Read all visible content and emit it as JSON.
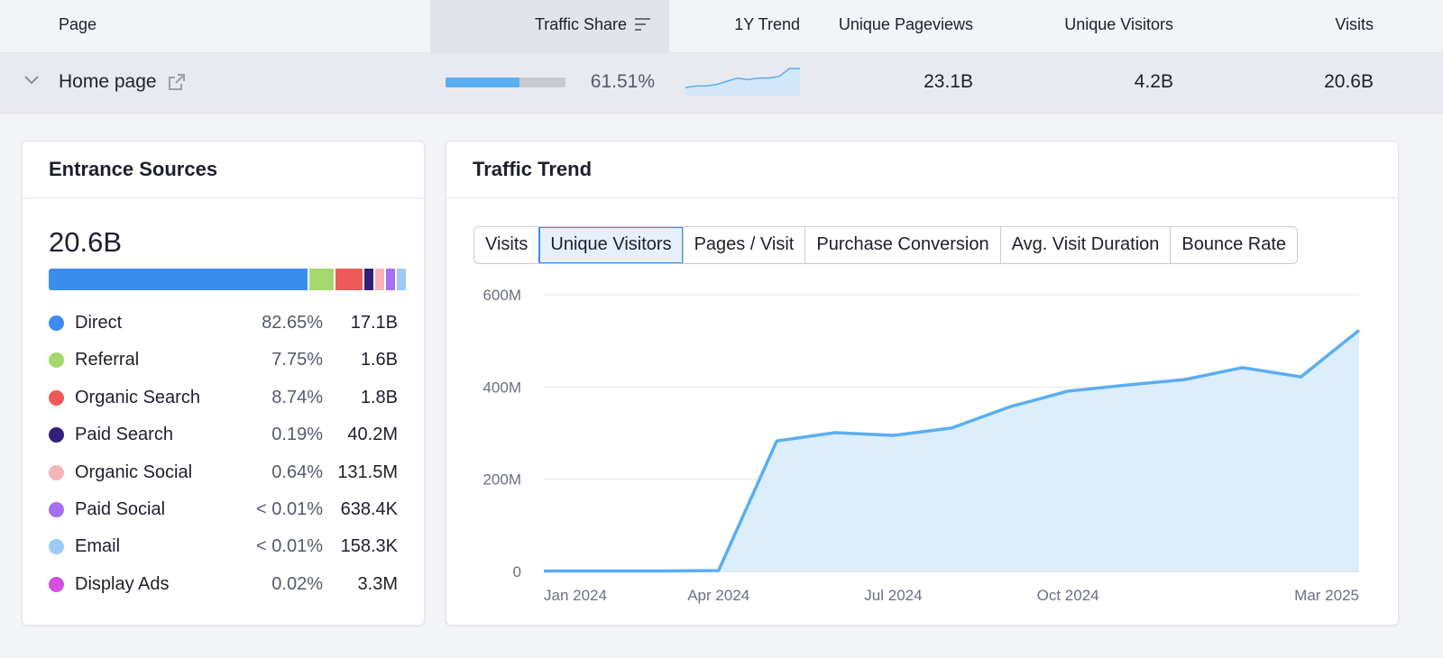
{
  "table": {
    "columns": [
      "Page",
      "Traffic Share",
      "1Y Trend",
      "Unique Pageviews",
      "Unique Visitors",
      "Visits"
    ],
    "rows": [
      {
        "page": "Home page",
        "traffic_share": {
          "value": 61.51,
          "label": "61.51%"
        },
        "trend": [
          5,
          6,
          6,
          7,
          9,
          11,
          10,
          11,
          11,
          12,
          17,
          17
        ],
        "unique_pageviews": "23.1B",
        "unique_visitors": "4.2B",
        "visits": "20.6B"
      }
    ]
  },
  "entrance_sources": {
    "title": "Entrance Sources",
    "total": "20.6B",
    "sources": [
      {
        "name": "Direct",
        "color": "#3b8ced",
        "share": {
          "value": 82.65,
          "label": "82.65%"
        },
        "visits": "17.1B"
      },
      {
        "name": "Referral",
        "color": "#a5d86e",
        "share": {
          "value": 7.75,
          "label": "7.75%"
        },
        "visits": "1.6B"
      },
      {
        "name": "Organic Search",
        "color": "#ec5a5a",
        "share": {
          "value": 8.74,
          "label": "8.74%"
        },
        "visits": "1.8B"
      },
      {
        "name": "Paid Search",
        "color": "#34207a",
        "share": {
          "value": 0.19,
          "label": "0.19%"
        },
        "visits": "40.2M"
      },
      {
        "name": "Organic Social",
        "color": "#f7b3b8",
        "share": {
          "value": 0.64,
          "label": "0.64%"
        },
        "visits": "131.5M"
      },
      {
        "name": "Paid Social",
        "color": "#a66ef0",
        "share": {
          "value": 0.003,
          "label": "< 0.01%"
        },
        "visits": "638.4K"
      },
      {
        "name": "Email",
        "color": "#9ccbf5",
        "share": {
          "value": 0.0008,
          "label": "< 0.01%"
        },
        "visits": "158.3K"
      },
      {
        "name": "Display Ads",
        "color": "#d74fe0",
        "share": {
          "value": 0.02,
          "label": "0.02%"
        },
        "visits": "3.3M"
      }
    ]
  },
  "traffic_trend": {
    "title": "Traffic Trend",
    "tabs": [
      "Visits",
      "Unique Visitors",
      "Pages / Visit",
      "Purchase Conversion",
      "Avg. Visit Duration",
      "Bounce Rate"
    ],
    "active_tab": "Unique Visitors"
  },
  "chart_data": {
    "type": "area",
    "categories": [
      "Jan 2024",
      null,
      null,
      "Apr 2024",
      null,
      null,
      "Jul 2024",
      null,
      null,
      "Oct 2024",
      null,
      null,
      null,
      null,
      "Mar 2025"
    ],
    "values": [
      1,
      1,
      1,
      2,
      283,
      301,
      295,
      311,
      357,
      391,
      404,
      416,
      442,
      422,
      523
    ],
    "color": "#5aaef2",
    "ylim": [
      0,
      600
    ],
    "yticks": [
      0,
      {
        "value": 200,
        "label": "200M"
      },
      {
        "value": 400,
        "label": "400M"
      },
      {
        "value": 600,
        "label": "600M"
      }
    ],
    "grid": true
  }
}
